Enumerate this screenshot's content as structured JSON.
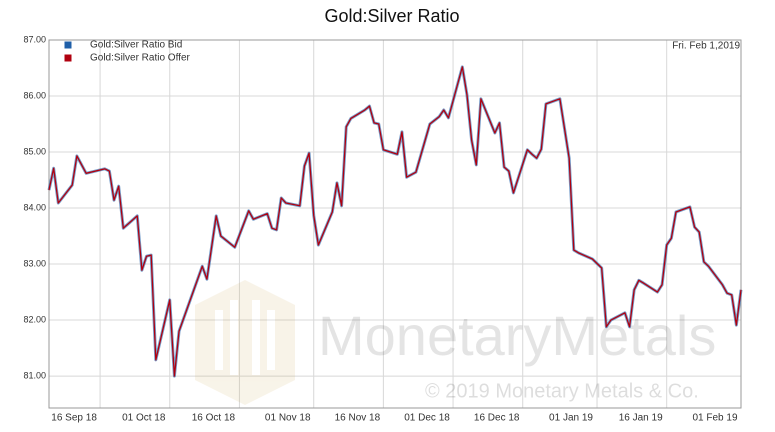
{
  "chart_data": {
    "type": "line",
    "title": "Gold:Silver Ratio",
    "annotation": "Fri. Feb 1,2019",
    "watermark": "MonetaryMetals",
    "copyright": "© 2019 Monetary Metals & Co.",
    "x": [
      "2018-09-05",
      "2018-09-06",
      "2018-09-07",
      "2018-09-10",
      "2018-09-11",
      "2018-09-13",
      "2018-09-14",
      "2018-09-17",
      "2018-09-18",
      "2018-09-19",
      "2018-09-20",
      "2018-09-21",
      "2018-09-24",
      "2018-09-25",
      "2018-09-26",
      "2018-09-27",
      "2018-09-28",
      "2018-10-01",
      "2018-10-02",
      "2018-10-03",
      "2018-10-08",
      "2018-10-09",
      "2018-10-11",
      "2018-10-12",
      "2018-10-15",
      "2018-10-18",
      "2018-10-19",
      "2018-10-22",
      "2018-10-23",
      "2018-10-24",
      "2018-10-25",
      "2018-10-26",
      "2018-10-29",
      "2018-10-30",
      "2018-10-31",
      "2018-11-01",
      "2018-11-02",
      "2018-11-05",
      "2018-11-06",
      "2018-11-07",
      "2018-11-08",
      "2018-11-09",
      "2018-11-12",
      "2018-11-13",
      "2018-11-14",
      "2018-11-15",
      "2018-11-16",
      "2018-11-19",
      "2018-11-20",
      "2018-11-21",
      "2018-11-23",
      "2018-11-26",
      "2018-11-28",
      "2018-11-29",
      "2018-11-30",
      "2018-12-03",
      "2018-12-04",
      "2018-12-05",
      "2018-12-06",
      "2018-12-07",
      "2018-12-10",
      "2018-12-11",
      "2018-12-12",
      "2018-12-13",
      "2018-12-14",
      "2018-12-17",
      "2018-12-18",
      "2018-12-19",
      "2018-12-20",
      "2018-12-21",
      "2018-12-24",
      "2018-12-26",
      "2018-12-27",
      "2018-12-28",
      "2018-12-31",
      "2019-01-02",
      "2019-01-03",
      "2019-01-04",
      "2019-01-07",
      "2019-01-08",
      "2019-01-09",
      "2019-01-10",
      "2019-01-11",
      "2019-01-14",
      "2019-01-15",
      "2019-01-16",
      "2019-01-17",
      "2019-01-18",
      "2019-01-21",
      "2019-01-22",
      "2019-01-23",
      "2019-01-24",
      "2019-01-25",
      "2019-01-28",
      "2019-01-29",
      "2019-01-30",
      "2019-01-31",
      "2019-02-01"
    ],
    "series": [
      {
        "name": "Gold:Silver Ratio Bid",
        "color": "#1f5fa8",
        "values": [
          84.32,
          84.71,
          84.09,
          84.41,
          84.93,
          84.62,
          84.64,
          84.7,
          84.66,
          84.14,
          84.39,
          83.64,
          83.86,
          82.89,
          83.14,
          83.16,
          81.29,
          82.36,
          81.0,
          81.8,
          82.96,
          82.73,
          83.86,
          83.5,
          83.3,
          83.95,
          83.8,
          83.9,
          83.64,
          83.61,
          84.18,
          84.09,
          84.04,
          84.75,
          84.98,
          83.87,
          83.34,
          83.93,
          84.45,
          84.04,
          85.45,
          85.6,
          85.75,
          85.82,
          85.52,
          85.5,
          85.04,
          84.96,
          85.36,
          84.55,
          84.64,
          85.5,
          85.63,
          85.75,
          85.61,
          86.52,
          86.02,
          85.21,
          84.77,
          85.95,
          85.34,
          85.52,
          84.73,
          84.66,
          84.27,
          85.04,
          84.96,
          84.89,
          85.05,
          85.86,
          85.95,
          84.89,
          83.25,
          83.2,
          83.09,
          82.93,
          81.88,
          82.0,
          82.13,
          81.88,
          82.54,
          82.71,
          82.66,
          82.5,
          82.63,
          83.34,
          83.46,
          83.93,
          84.02,
          83.66,
          83.57,
          83.04,
          82.96,
          82.63,
          82.48,
          82.45,
          81.91,
          82.54
        ]
      },
      {
        "name": "Gold:Silver Ratio Offer",
        "color": "#b0000f",
        "values": [
          84.32,
          84.71,
          84.09,
          84.41,
          84.93,
          84.62,
          84.64,
          84.7,
          84.66,
          84.14,
          84.39,
          83.64,
          83.86,
          82.89,
          83.14,
          83.16,
          81.29,
          82.36,
          81.0,
          81.8,
          82.96,
          82.73,
          83.86,
          83.5,
          83.3,
          83.95,
          83.8,
          83.9,
          83.64,
          83.61,
          84.18,
          84.09,
          84.04,
          84.75,
          84.98,
          83.87,
          83.34,
          83.93,
          84.45,
          84.04,
          85.45,
          85.6,
          85.75,
          85.82,
          85.52,
          85.5,
          85.04,
          84.96,
          85.36,
          84.55,
          84.64,
          85.5,
          85.63,
          85.75,
          85.61,
          86.52,
          86.02,
          85.21,
          84.77,
          85.95,
          85.34,
          85.52,
          84.73,
          84.66,
          84.27,
          85.04,
          84.96,
          84.89,
          85.05,
          85.86,
          85.95,
          84.89,
          83.25,
          83.2,
          83.09,
          82.93,
          81.88,
          82.0,
          82.13,
          81.88,
          82.54,
          82.71,
          82.66,
          82.5,
          82.63,
          83.34,
          83.46,
          83.93,
          84.02,
          83.66,
          83.57,
          83.04,
          82.96,
          82.63,
          82.48,
          82.45,
          81.91,
          82.54
        ]
      }
    ],
    "xlim": [
      "2018-09-05",
      "2019-02-01"
    ],
    "xticks": [
      {
        "value": "2018-09-16",
        "label": "16 Sep 18"
      },
      {
        "value": "2018-10-01",
        "label": "01 Oct 18"
      },
      {
        "value": "2018-10-16",
        "label": "16 Oct 18"
      },
      {
        "value": "2018-11-01",
        "label": "01 Nov 18"
      },
      {
        "value": "2018-11-16",
        "label": "16 Nov 18"
      },
      {
        "value": "2018-12-01",
        "label": "01 Dec 18"
      },
      {
        "value": "2018-12-16",
        "label": "16 Dec 18"
      },
      {
        "value": "2019-01-01",
        "label": "01 Jan 19"
      },
      {
        "value": "2019-01-16",
        "label": "16 Jan 19"
      },
      {
        "value": "2019-02-01",
        "label": "01 Feb 19"
      }
    ],
    "ylim": [
      80.43,
      87
    ],
    "yticks": [
      {
        "value": 81,
        "label": "81.00"
      },
      {
        "value": 82,
        "label": "82.00"
      },
      {
        "value": 83,
        "label": "83.00"
      },
      {
        "value": 84,
        "label": "84.00"
      },
      {
        "value": 85,
        "label": "85.00"
      },
      {
        "value": 86,
        "label": "86.00"
      },
      {
        "value": 87,
        "label": "87.00"
      }
    ],
    "grid": true
  }
}
